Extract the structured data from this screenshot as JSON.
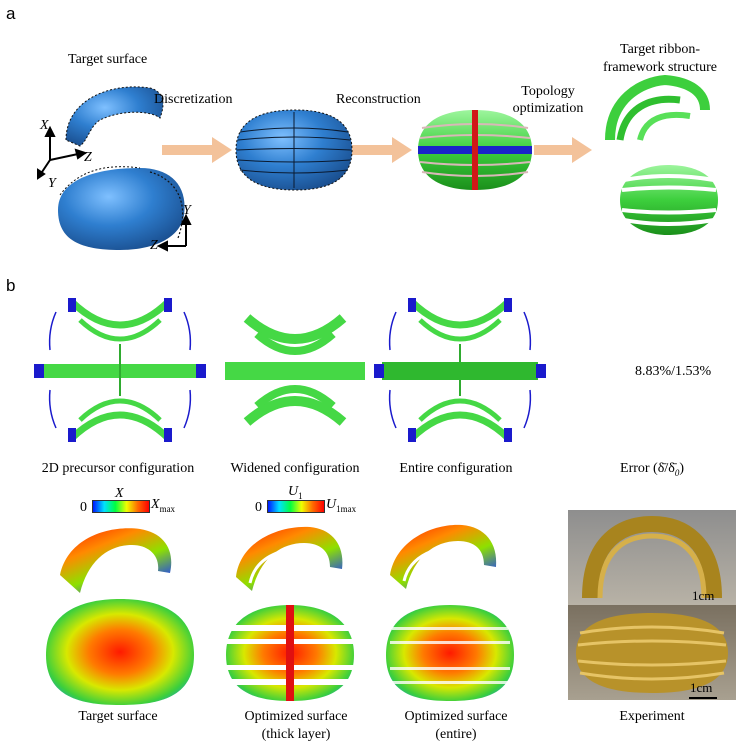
{
  "panels": {
    "a": "a",
    "b": "b"
  },
  "panel_a": {
    "target_surface": "Target surface",
    "discretization": "Discretization",
    "reconstruction": "Reconstruction",
    "topology_line1": "Topology",
    "topology_line2": "optimization",
    "target_ribbon_line1": "Target ribbon-",
    "target_ribbon_line2": "framework structure",
    "axes": {
      "x": "X",
      "y": "Y",
      "z": "Z"
    }
  },
  "panel_b_top": {
    "labels": [
      "2D precursor configuration",
      "Widened configuration",
      "Entire configuration"
    ],
    "error_label": "Error (δ̄/δ̄",
    "error_sub": "0",
    "error_close": ")",
    "error_value": "8.83%/1.53%"
  },
  "panel_b_bottom": {
    "colorbar_x": {
      "min": "0",
      "var": "X",
      "max_main": "X",
      "max_sub": "max"
    },
    "colorbar_u": {
      "min": "0",
      "var_main": "U",
      "var_sub": "1",
      "max_main": "U",
      "max_sub": "1max"
    },
    "labels": {
      "target": "Target surface",
      "optimized_thick_1": "Optimized surface",
      "optimized_thick_2": "(thick layer)",
      "optimized_entire_1": "Optimized surface",
      "optimized_entire_2": "(entire)",
      "experiment": "Experiment"
    },
    "scalebar_1": "1cm",
    "scalebar_2": "1cm"
  }
}
